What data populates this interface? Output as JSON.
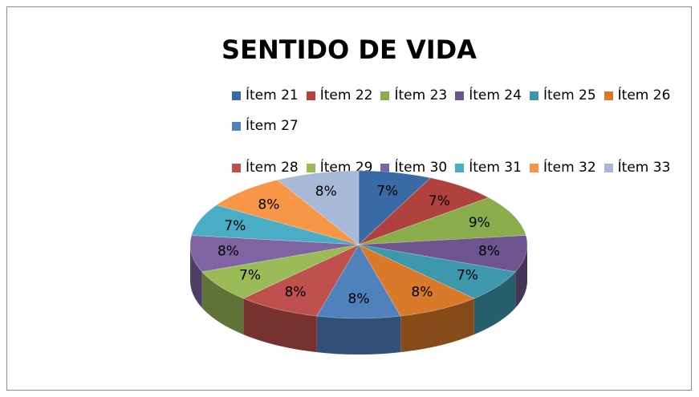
{
  "chart_data": {
    "type": "pie",
    "title": "SENTIDO DE VIDA",
    "categories": [
      "Ítem 21",
      "Ítem 22",
      "Ítem 23",
      "Ítem 24",
      "Ítem 25",
      "Ítem 26",
      "Ítem 27",
      "Ítem 28",
      "Ítem 29",
      "Ítem 30",
      "Ítem 31",
      "Ítem 32",
      "Ítem 33"
    ],
    "values": [
      7,
      7,
      9,
      8,
      7,
      8,
      8,
      8,
      7,
      8,
      7,
      8,
      8
    ],
    "value_labels": [
      "7%",
      "7%",
      "9%",
      "8%",
      "7%",
      "8%",
      "8%",
      "8%",
      "7%",
      "8%",
      "7%",
      "8%",
      "8%"
    ],
    "colors": [
      "#3a6aa5",
      "#b0413e",
      "#8aac4a",
      "#6f5590",
      "#3d97ad",
      "#d9792a",
      "#4f81bd",
      "#c0504d",
      "#9bbb59",
      "#8064a2",
      "#4bacc6",
      "#f79646",
      "#a8b9d8"
    ]
  }
}
